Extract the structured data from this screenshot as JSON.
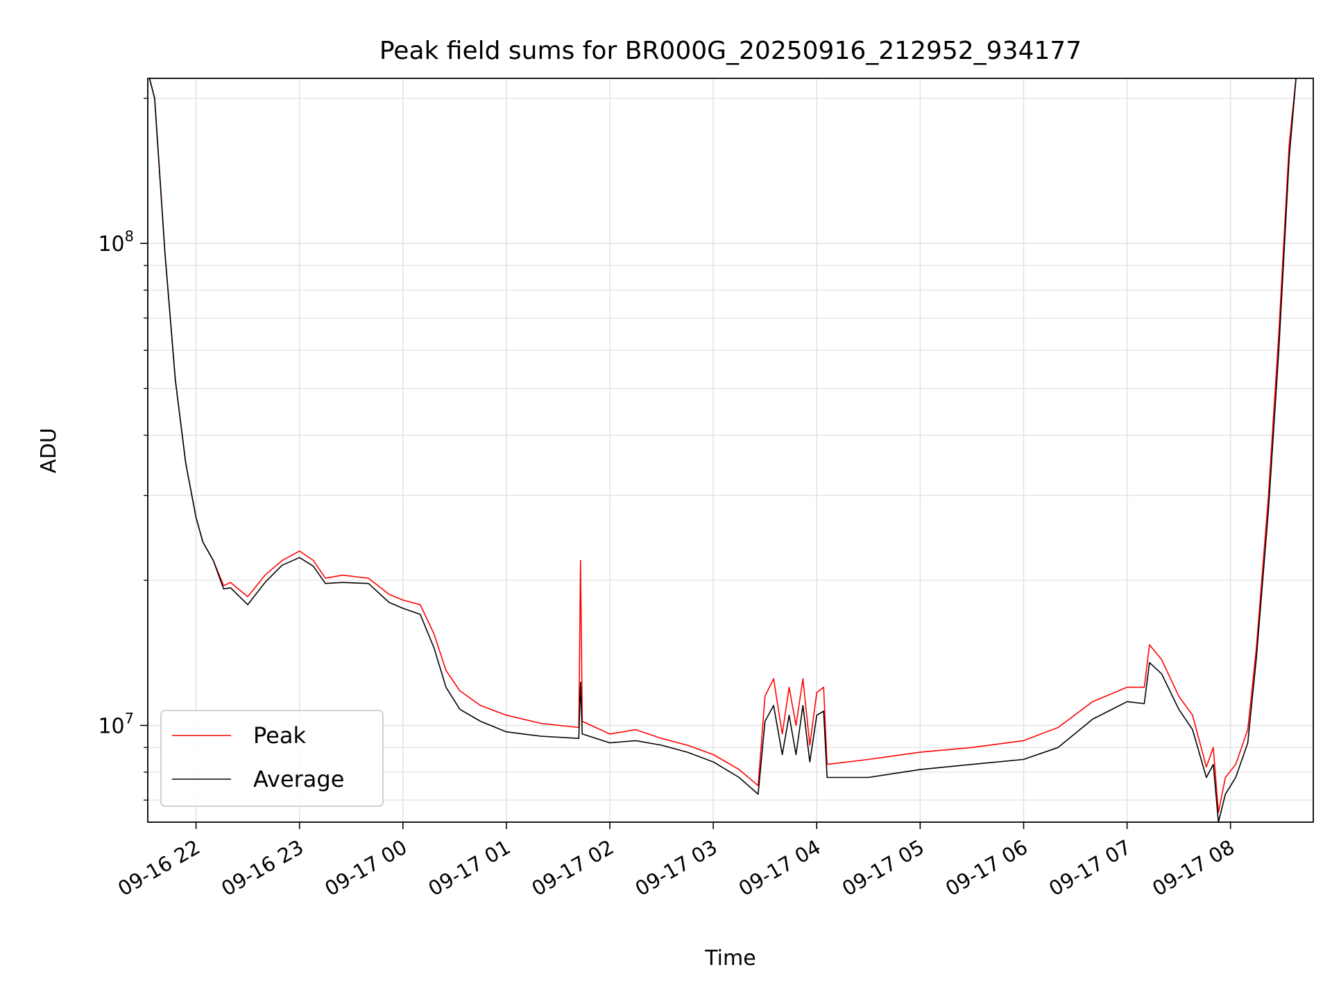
{
  "chart_data": {
    "type": "line",
    "title": "Peak field sums for BR000G_20250916_212952_934177",
    "xlabel": "Time",
    "ylabel": "ADU",
    "y_scale": "log",
    "ylim": [
      6300000,
      220000000
    ],
    "xlim": [
      "2025-09-16 21:32",
      "2025-09-17 08:48"
    ],
    "x_ticks": [
      "09-16 22",
      "09-16 23",
      "09-17 00",
      "09-17 01",
      "09-17 02",
      "09-17 03",
      "09-17 04",
      "09-17 05",
      "09-17 06",
      "09-17 07",
      "09-17 08"
    ],
    "x_tick_times": [
      "2025-09-16 22:00",
      "2025-09-16 23:00",
      "2025-09-17 00:00",
      "2025-09-17 01:00",
      "2025-09-17 02:00",
      "2025-09-17 03:00",
      "2025-09-17 04:00",
      "2025-09-17 05:00",
      "2025-09-17 06:00",
      "2025-09-17 07:00",
      "2025-09-17 08:00"
    ],
    "y_ticks": [
      {
        "value": 10000000,
        "base": "10",
        "exp": "7"
      },
      {
        "value": 100000000,
        "base": "10",
        "exp": "8"
      }
    ],
    "grid": true,
    "legend_position": "lower-left",
    "series": [
      {
        "name": "Peak",
        "color": "#ff0000",
        "x": [
          "2025-09-16 21:33",
          "2025-09-16 21:36",
          "2025-09-16 21:42",
          "2025-09-16 21:48",
          "2025-09-16 21:54",
          "2025-09-16 22:00",
          "2025-09-16 22:04",
          "2025-09-16 22:10",
          "2025-09-16 22:16",
          "2025-09-16 22:20",
          "2025-09-16 22:30",
          "2025-09-16 22:40",
          "2025-09-16 22:50",
          "2025-09-16 23:00",
          "2025-09-16 23:08",
          "2025-09-16 23:15",
          "2025-09-16 23:25",
          "2025-09-16 23:40",
          "2025-09-16 23:52",
          "2025-09-17 00:00",
          "2025-09-17 00:10",
          "2025-09-17 00:18",
          "2025-09-17 00:25",
          "2025-09-17 00:33",
          "2025-09-17 00:45",
          "2025-09-17 01:00",
          "2025-09-17 01:20",
          "2025-09-17 01:42",
          "2025-09-17 01:43",
          "2025-09-17 01:44",
          "2025-09-17 02:00",
          "2025-09-17 02:15",
          "2025-09-17 02:30",
          "2025-09-17 02:45",
          "2025-09-17 03:00",
          "2025-09-17 03:15",
          "2025-09-17 03:26",
          "2025-09-17 03:30",
          "2025-09-17 03:35",
          "2025-09-17 03:40",
          "2025-09-17 03:44",
          "2025-09-17 03:48",
          "2025-09-17 03:52",
          "2025-09-17 03:56",
          "2025-09-17 04:00",
          "2025-09-17 04:04",
          "2025-09-17 04:06",
          "2025-09-17 04:30",
          "2025-09-17 05:00",
          "2025-09-17 05:30",
          "2025-09-17 06:00",
          "2025-09-17 06:20",
          "2025-09-17 06:40",
          "2025-09-17 07:00",
          "2025-09-17 07:10",
          "2025-09-17 07:13",
          "2025-09-17 07:20",
          "2025-09-17 07:30",
          "2025-09-17 07:38",
          "2025-09-17 07:46",
          "2025-09-17 07:50",
          "2025-09-17 07:53",
          "2025-09-17 07:57",
          "2025-09-17 08:03",
          "2025-09-17 08:10",
          "2025-09-17 08:15",
          "2025-09-17 08:22",
          "2025-09-17 08:28",
          "2025-09-17 08:34",
          "2025-09-17 08:38"
        ],
        "y": [
          220000000,
          200000000,
          95000000,
          52000000,
          35000000,
          27000000,
          24000000,
          22000000,
          19500000,
          19800000,
          18500000,
          20500000,
          22000000,
          23000000,
          22000000,
          20200000,
          20500000,
          20200000,
          18700000,
          18200000,
          17800000,
          15500000,
          13000000,
          11800000,
          11000000,
          10500000,
          10100000,
          9900000,
          22000000,
          10200000,
          9600000,
          9800000,
          9400000,
          9100000,
          8700000,
          8100000,
          7500000,
          11500000,
          12500000,
          9600000,
          12000000,
          10000000,
          12500000,
          9100000,
          11700000,
          12000000,
          8300000,
          8500000,
          8800000,
          9000000,
          9300000,
          9900000,
          11200000,
          12000000,
          12000000,
          14700000,
          13700000,
          11500000,
          10500000,
          8200000,
          9000000,
          6600000,
          7800000,
          8300000,
          9800000,
          14500000,
          30000000,
          65000000,
          160000000,
          220000000
        ]
      },
      {
        "name": "Average",
        "color": "#000000",
        "x": [
          "2025-09-16 21:33",
          "2025-09-16 21:36",
          "2025-09-16 21:42",
          "2025-09-16 21:48",
          "2025-09-16 21:54",
          "2025-09-16 22:00",
          "2025-09-16 22:04",
          "2025-09-16 22:10",
          "2025-09-16 22:16",
          "2025-09-16 22:20",
          "2025-09-16 22:30",
          "2025-09-16 22:40",
          "2025-09-16 22:50",
          "2025-09-16 23:00",
          "2025-09-16 23:08",
          "2025-09-16 23:15",
          "2025-09-16 23:25",
          "2025-09-16 23:40",
          "2025-09-16 23:52",
          "2025-09-17 00:00",
          "2025-09-17 00:10",
          "2025-09-17 00:18",
          "2025-09-17 00:25",
          "2025-09-17 00:33",
          "2025-09-17 00:45",
          "2025-09-17 01:00",
          "2025-09-17 01:20",
          "2025-09-17 01:42",
          "2025-09-17 01:43",
          "2025-09-17 01:44",
          "2025-09-17 02:00",
          "2025-09-17 02:15",
          "2025-09-17 02:30",
          "2025-09-17 02:45",
          "2025-09-17 03:00",
          "2025-09-17 03:15",
          "2025-09-17 03:26",
          "2025-09-17 03:30",
          "2025-09-17 03:35",
          "2025-09-17 03:40",
          "2025-09-17 03:44",
          "2025-09-17 03:48",
          "2025-09-17 03:52",
          "2025-09-17 03:56",
          "2025-09-17 04:00",
          "2025-09-17 04:04",
          "2025-09-17 04:06",
          "2025-09-17 04:30",
          "2025-09-17 05:00",
          "2025-09-17 05:30",
          "2025-09-17 06:00",
          "2025-09-17 06:20",
          "2025-09-17 06:40",
          "2025-09-17 07:00",
          "2025-09-17 07:10",
          "2025-09-17 07:13",
          "2025-09-17 07:20",
          "2025-09-17 07:30",
          "2025-09-17 07:38",
          "2025-09-17 07:46",
          "2025-09-17 07:50",
          "2025-09-17 07:53",
          "2025-09-17 07:57",
          "2025-09-17 08:03",
          "2025-09-17 08:10",
          "2025-09-17 08:15",
          "2025-09-17 08:22",
          "2025-09-17 08:28",
          "2025-09-17 08:34",
          "2025-09-17 08:38"
        ],
        "y": [
          220000000,
          200000000,
          95000000,
          52000000,
          35000000,
          27000000,
          24000000,
          22000000,
          19200000,
          19300000,
          17800000,
          19800000,
          21500000,
          22300000,
          21400000,
          19700000,
          19800000,
          19700000,
          18000000,
          17500000,
          17000000,
          14500000,
          12000000,
          10800000,
          10200000,
          9700000,
          9500000,
          9400000,
          12300000,
          9600000,
          9200000,
          9300000,
          9100000,
          8800000,
          8400000,
          7800000,
          7200000,
          10200000,
          11000000,
          8700000,
          10500000,
          8700000,
          11000000,
          8400000,
          10500000,
          10700000,
          7800000,
          7800000,
          8100000,
          8300000,
          8500000,
          9000000,
          10300000,
          11200000,
          11100000,
          13500000,
          12800000,
          10800000,
          9800000,
          7800000,
          8300000,
          6300000,
          7200000,
          7800000,
          9200000,
          13800000,
          28000000,
          60000000,
          150000000,
          220000000
        ]
      }
    ]
  }
}
